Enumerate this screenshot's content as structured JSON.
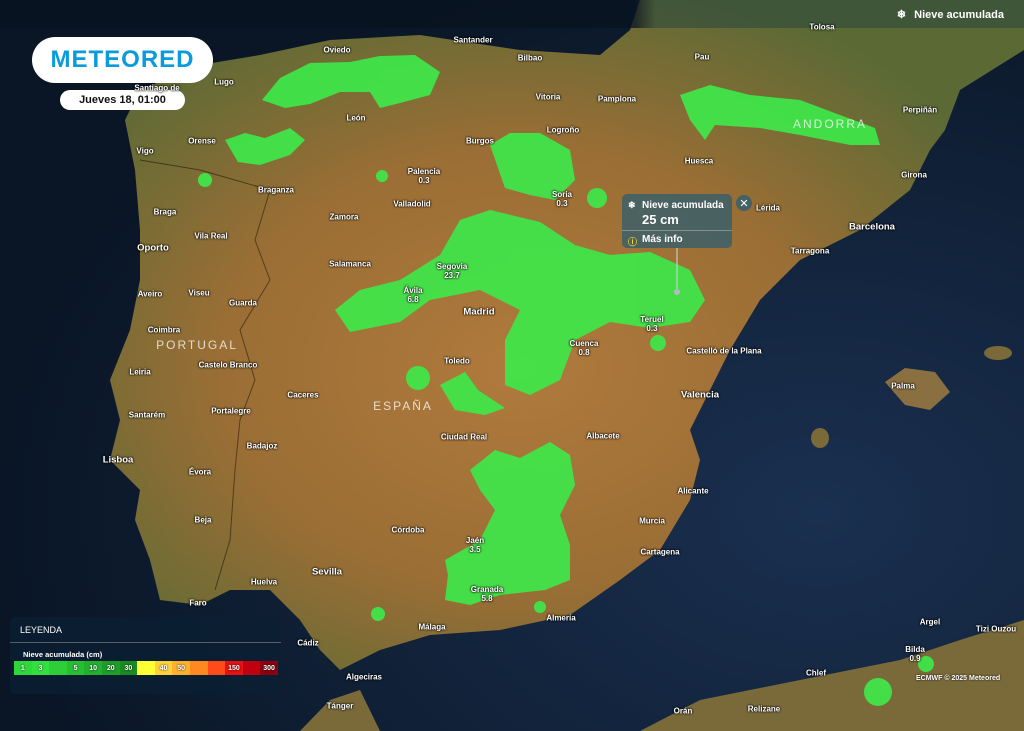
{
  "header": {
    "layer_label": "Nieve acumulada",
    "layer_icon": "snowflake-icon"
  },
  "brand": {
    "logo_text": "METEORED",
    "date": "Jueves 18, 01:00"
  },
  "tooltip": {
    "title": "Nieve acumulada",
    "value": "25 cm",
    "more_info": "Más info",
    "close": "✕"
  },
  "legend": {
    "title": "LEYENDA",
    "subtitle": "Nieve acumulada (cm)",
    "stops": [
      {
        "label": "1",
        "color": "#2fd83a"
      },
      {
        "label": "3",
        "color": "#33e040"
      },
      {
        "label": "",
        "color": "#2ccf38"
      },
      {
        "label": "5",
        "color": "#27be33"
      },
      {
        "label": "10",
        "color": "#24b02f"
      },
      {
        "label": "20",
        "color": "#1e9e29"
      },
      {
        "label": "30",
        "color": "#1a8a22"
      },
      {
        "label": "",
        "color": "#ffff33"
      },
      {
        "label": "40",
        "color": "#ffd23a"
      },
      {
        "label": "50",
        "color": "#ffb12e"
      },
      {
        "label": "",
        "color": "#ff8820"
      },
      {
        "label": "",
        "color": "#ff4a1a"
      },
      {
        "label": "150",
        "color": "#e81010"
      },
      {
        "label": "",
        "color": "#c00010"
      },
      {
        "label": "300",
        "color": "#8a0010"
      }
    ]
  },
  "countries": [
    "PORTUGAL",
    "ESPAÑA",
    "ANDORRA"
  ],
  "cities": [
    {
      "name": "Santander"
    },
    {
      "name": "Oviedo"
    },
    {
      "name": "Bilbao"
    },
    {
      "name": "Vitoria"
    },
    {
      "name": "Pamplona"
    },
    {
      "name": "Pau"
    },
    {
      "name": "Tolosa"
    },
    {
      "name": "Perpiñán"
    },
    {
      "name": "Lugo"
    },
    {
      "name": "Santiago de"
    },
    {
      "name": "León"
    },
    {
      "name": "Logroño"
    },
    {
      "name": "Burgos"
    },
    {
      "name": "Vigo"
    },
    {
      "name": "Orense"
    },
    {
      "name": "Huesca"
    },
    {
      "name": "Palencia",
      "value": "0.3"
    },
    {
      "name": "Girona"
    },
    {
      "name": "Braganza"
    },
    {
      "name": "Soria",
      "value": "0.3"
    },
    {
      "name": "Braga"
    },
    {
      "name": "Valladolid"
    },
    {
      "name": "Zamora"
    },
    {
      "name": "Lérida"
    },
    {
      "name": "Barcelona"
    },
    {
      "name": "Vila Real"
    },
    {
      "name": "Oporto"
    },
    {
      "name": "Tarragona"
    },
    {
      "name": "Salamanca"
    },
    {
      "name": "Segovia",
      "value": "23.7"
    },
    {
      "name": "Aveiro"
    },
    {
      "name": "Viseu"
    },
    {
      "name": "Guarda"
    },
    {
      "name": "Ávila",
      "value": "6.8"
    },
    {
      "name": "Madrid"
    },
    {
      "name": "Teruel",
      "value": "0.3"
    },
    {
      "name": "Coimbra"
    },
    {
      "name": "Cuenca",
      "value": "0.8"
    },
    {
      "name": "Castelló de la Plana"
    },
    {
      "name": "Toledo"
    },
    {
      "name": "Leiria"
    },
    {
      "name": "Castelo Branco"
    },
    {
      "name": "Palma"
    },
    {
      "name": "Caceres"
    },
    {
      "name": "Valencia"
    },
    {
      "name": "Santarém"
    },
    {
      "name": "Portalegre"
    },
    {
      "name": "Ciudad Real"
    },
    {
      "name": "Albacete"
    },
    {
      "name": "Badajoz"
    },
    {
      "name": "Lisboa"
    },
    {
      "name": "Évora"
    },
    {
      "name": "Alicante"
    },
    {
      "name": "Beja"
    },
    {
      "name": "Murcia"
    },
    {
      "name": "Córdoba"
    },
    {
      "name": "Jaén",
      "value": "3.5"
    },
    {
      "name": "Cartagena"
    },
    {
      "name": "Sevilla"
    },
    {
      "name": "Huelva"
    },
    {
      "name": "Granada",
      "value": "5.8"
    },
    {
      "name": "Faro"
    },
    {
      "name": "Almería"
    },
    {
      "name": "Málaga"
    },
    {
      "name": "Argel"
    },
    {
      "name": "Tizi Ouzou"
    },
    {
      "name": "Cádiz"
    },
    {
      "name": "Bilda",
      "value": "0.9"
    },
    {
      "name": "Chlef"
    },
    {
      "name": "Algeciras"
    },
    {
      "name": "Tánger"
    },
    {
      "name": "Orán"
    },
    {
      "name": "Relizane"
    }
  ],
  "attribution": "ECMWF © 2025 Meteored",
  "colors": {
    "snow": "#3ee84a",
    "ocean": "#0c1a2c",
    "brand": "#0a9bdc"
  }
}
